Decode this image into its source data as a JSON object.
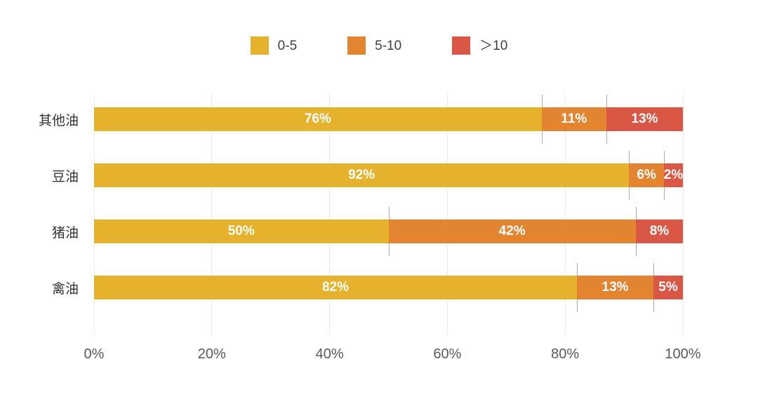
{
  "chart_data": {
    "type": "bar",
    "orientation": "horizontal",
    "stacked": true,
    "title": "",
    "xlabel": "",
    "ylabel": "",
    "categories": [
      "其他油",
      "豆油",
      "猪油",
      "禽油"
    ],
    "series": [
      {
        "name": "0-5",
        "color": "#E6B22C",
        "values": [
          76,
          92,
          50,
          82
        ]
      },
      {
        "name": "5-10",
        "color": "#E28430",
        "values": [
          11,
          6,
          42,
          13
        ]
      },
      {
        "name": "＞10",
        "color": "#DB5745",
        "values": [
          13,
          2,
          8,
          5
        ]
      }
    ],
    "value_label_suffix": "%",
    "value_label_color": "#ffffff",
    "x_ticks": [
      "0%",
      "20%",
      "40%",
      "60%",
      "80%",
      "100%"
    ],
    "xlim": [
      0,
      100
    ],
    "grid": true,
    "gridline_color": "#ececec",
    "separator_line_color": "#ababab",
    "legend_position": "top"
  }
}
